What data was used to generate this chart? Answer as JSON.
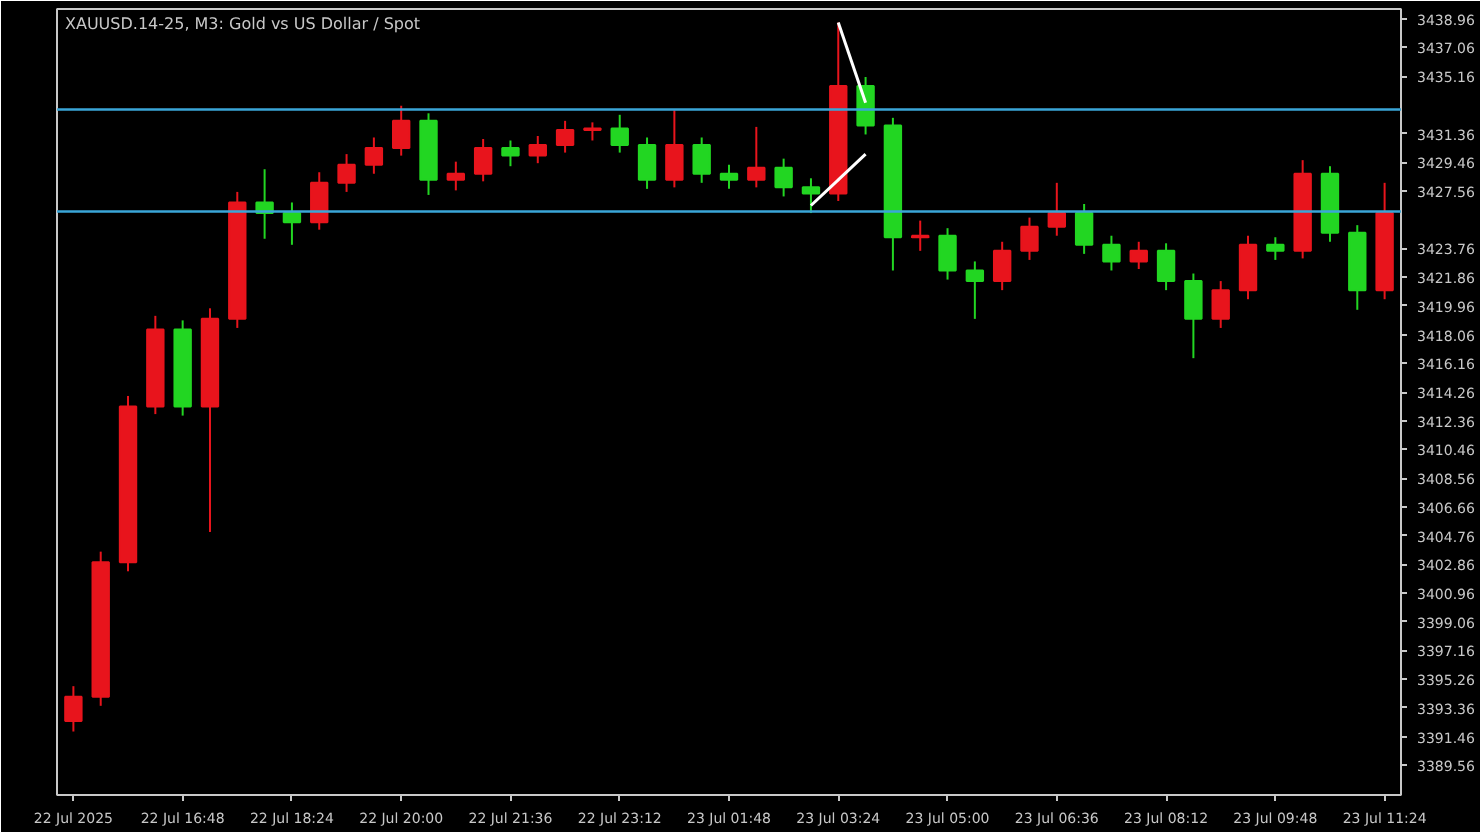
{
  "chart_data": {
    "type": "candlestick",
    "title": "XAUUSD.14-25, M3:  Gold vs US Dollar / Spot",
    "categories": [
      "22 Jul 2025",
      null,
      null,
      null,
      "22 Jul 16:48",
      null,
      null,
      null,
      "22 Jul 18:24",
      null,
      null,
      null,
      "22 Jul 20:00",
      null,
      null,
      null,
      "22 Jul 21:36",
      null,
      null,
      null,
      "22 Jul 23:12",
      null,
      null,
      null,
      "23 Jul 01:48",
      null,
      null,
      null,
      "23 Jul 03:24",
      null,
      null,
      null,
      "23 Jul 05:00",
      null,
      null,
      null,
      "23 Jul 06:36",
      null,
      null,
      null,
      "23 Jul 08:12",
      null,
      null,
      null,
      "23 Jul 09:48",
      null,
      null,
      null,
      "23 Jul 11:24"
    ],
    "ohlc": [
      [
        3392.5,
        3394.8,
        3391.8,
        3394.1
      ],
      [
        3394.1,
        3403.7,
        3393.5,
        3403.0
      ],
      [
        3403.0,
        3414.0,
        3402.4,
        3413.3
      ],
      [
        3413.3,
        3419.3,
        3412.8,
        3418.4
      ],
      [
        3418.4,
        3419.0,
        3412.7,
        3413.3
      ],
      [
        3413.3,
        3419.8,
        3405.0,
        3419.1
      ],
      [
        3419.1,
        3427.5,
        3418.5,
        3426.8
      ],
      [
        3426.8,
        3429.0,
        3424.4,
        3426.1
      ],
      [
        3426.1,
        3426.8,
        3424.0,
        3425.5
      ],
      [
        3425.5,
        3428.8,
        3425.0,
        3428.1
      ],
      [
        3428.1,
        3430.0,
        3427.5,
        3429.3
      ],
      [
        3429.3,
        3431.1,
        3428.7,
        3430.4
      ],
      [
        3430.4,
        3433.2,
        3429.9,
        3432.2
      ],
      [
        3432.2,
        3432.7,
        3427.3,
        3428.3
      ],
      [
        3428.3,
        3429.5,
        3427.6,
        3428.7
      ],
      [
        3428.7,
        3431.0,
        3428.2,
        3430.4
      ],
      [
        3430.4,
        3430.9,
        3429.2,
        3429.9
      ],
      [
        3429.9,
        3431.2,
        3429.4,
        3430.6
      ],
      [
        3430.6,
        3432.2,
        3430.1,
        3431.6
      ],
      [
        3431.6,
        3432.1,
        3430.9,
        3431.7
      ],
      [
        3431.7,
        3432.6,
        3430.1,
        3430.6
      ],
      [
        3430.6,
        3431.1,
        3427.7,
        3428.3
      ],
      [
        3428.3,
        3432.9,
        3427.8,
        3430.6
      ],
      [
        3430.6,
        3431.1,
        3428.1,
        3428.7
      ],
      [
        3428.7,
        3429.3,
        3427.7,
        3428.3
      ],
      [
        3428.3,
        3431.8,
        3427.8,
        3429.1
      ],
      [
        3429.1,
        3429.7,
        3427.2,
        3427.8
      ],
      [
        3427.8,
        3428.4,
        3426.1,
        3427.4
      ],
      [
        3427.4,
        3438.7,
        3426.9,
        3434.5
      ],
      [
        3434.5,
        3435.1,
        3431.3,
        3431.9
      ],
      [
        3431.9,
        3432.4,
        3422.3,
        3424.5
      ],
      [
        3424.5,
        3425.6,
        3423.6,
        3424.6
      ],
      [
        3424.6,
        3425.1,
        3421.7,
        3422.3
      ],
      [
        3422.3,
        3422.9,
        3419.1,
        3421.6
      ],
      [
        3421.6,
        3424.2,
        3421.0,
        3423.6
      ],
      [
        3423.6,
        3425.8,
        3423.0,
        3425.2
      ],
      [
        3425.2,
        3428.1,
        3424.6,
        3426.1
      ],
      [
        3426.1,
        3426.7,
        3423.4,
        3424.0
      ],
      [
        3424.0,
        3424.6,
        3422.3,
        3422.9
      ],
      [
        3422.9,
        3424.2,
        3422.4,
        3423.6
      ],
      [
        3423.6,
        3424.1,
        3421.0,
        3421.6
      ],
      [
        3421.6,
        3422.1,
        3416.5,
        3419.1
      ],
      [
        3419.1,
        3421.6,
        3418.5,
        3421.0
      ],
      [
        3421.0,
        3424.6,
        3420.4,
        3424.0
      ],
      [
        3424.0,
        3424.5,
        3423.0,
        3423.6
      ],
      [
        3423.6,
        3429.6,
        3423.1,
        3428.7
      ],
      [
        3428.7,
        3429.2,
        3424.2,
        3424.8
      ],
      [
        3424.8,
        3425.3,
        3419.7,
        3421.0
      ],
      [
        3421.0,
        3428.1,
        3420.4,
        3426.1
      ]
    ],
    "colors": [
      "#e8141c",
      "#e8141c",
      "#e8141c",
      "#e8141c",
      "#22d622",
      "#e8141c",
      "#e8141c",
      "#22d622",
      "#22d622",
      "#e8141c",
      "#e8141c",
      "#e8141c",
      "#e8141c",
      "#22d622",
      "#e8141c",
      "#e8141c",
      "#22d622",
      "#e8141c",
      "#e8141c",
      "#e8141c",
      "#22d622",
      "#22d622",
      "#e8141c",
      "#22d622",
      "#22d622",
      "#e8141c",
      "#22d622",
      "#22d622",
      "#e8141c",
      "#22d622",
      "#22d622",
      "#e8141c",
      "#22d622",
      "#22d622",
      "#e8141c",
      "#e8141c",
      "#e8141c",
      "#22d622",
      "#22d622",
      "#e8141c",
      "#22d622",
      "#22d622",
      "#e8141c",
      "#e8141c",
      "#22d622",
      "#e8141c",
      "#22d622",
      "#22d622",
      "#e8141c"
    ],
    "series": [
      {
        "type": "line",
        "color": "#ffffff",
        "values": [
          null,
          null,
          null,
          null,
          null,
          null,
          null,
          null,
          null,
          null,
          null,
          null,
          null,
          null,
          null,
          null,
          null,
          null,
          null,
          null,
          null,
          null,
          null,
          null,
          null,
          null,
          null,
          null,
          3438.7,
          3433.4,
          null,
          null,
          null,
          null,
          null,
          null,
          null,
          null,
          null,
          null,
          null,
          null,
          null,
          null,
          null,
          null,
          null,
          null,
          null
        ]
      },
      {
        "type": "line",
        "color": "#ffffff",
        "values": [
          null,
          null,
          null,
          null,
          null,
          null,
          null,
          null,
          null,
          null,
          null,
          null,
          null,
          null,
          null,
          null,
          null,
          null,
          null,
          null,
          null,
          null,
          null,
          null,
          null,
          null,
          null,
          3426.6,
          3428.3,
          3430.0,
          null,
          null,
          null,
          null,
          null,
          null,
          null,
          null,
          null,
          null,
          null,
          null,
          null,
          null,
          null,
          null,
          null,
          null,
          null
        ]
      }
    ],
    "ref_lines": [
      {
        "axis": "y",
        "value": 3432.95,
        "color": "#3aa6d8",
        "line_style": "solid"
      },
      {
        "axis": "y",
        "value": 3426.2,
        "color": "#3aa6d8",
        "line_style": "solid"
      }
    ],
    "ylim": [
      3387.6,
      3439.6
    ],
    "yticks": [
      3438.96,
      3437.06,
      3435.16,
      3431.36,
      3429.46,
      3427.56,
      3423.76,
      3421.86,
      3419.96,
      3418.06,
      3416.16,
      3414.26,
      3412.36,
      3410.46,
      3408.56,
      3406.66,
      3404.76,
      3402.86,
      3400.96,
      3399.06,
      3397.16,
      3395.26,
      3393.36,
      3391.46,
      3389.56
    ],
    "grid": false
  }
}
